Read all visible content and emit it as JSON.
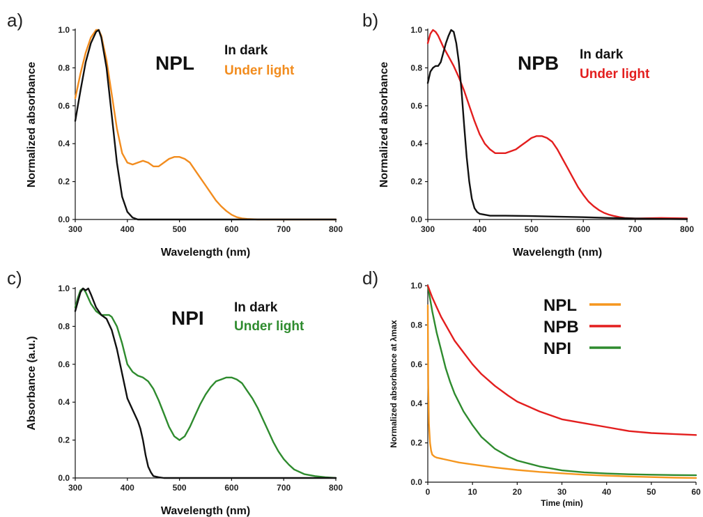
{
  "chart_data": [
    {
      "panel": "a)",
      "type": "line",
      "label": "NPL",
      "xlabel": "Wavelength (nm)",
      "ylabel": "Normalized absorbance",
      "xlim": [
        300,
        800
      ],
      "ylim": [
        0,
        1.0
      ],
      "xticks": [
        "300",
        "400",
        "500",
        "600",
        "700",
        "800"
      ],
      "yticks": [
        "0.0",
        "0.2",
        "0.4",
        "0.6",
        "0.8",
        "1.0"
      ],
      "series": [
        {
          "name": "In dark",
          "color": "#111111",
          "x": [
            300,
            310,
            320,
            330,
            340,
            345,
            350,
            360,
            370,
            380,
            390,
            400,
            410,
            420,
            450,
            500,
            600,
            700,
            800
          ],
          "y": [
            0.52,
            0.68,
            0.83,
            0.93,
            0.99,
            1.0,
            0.96,
            0.8,
            0.55,
            0.3,
            0.12,
            0.04,
            0.01,
            0.0,
            0.0,
            0.0,
            0.0,
            0.0,
            0.0
          ]
        },
        {
          "name": "Under light",
          "color": "#f28c1e",
          "x": [
            300,
            310,
            320,
            330,
            340,
            345,
            350,
            360,
            370,
            380,
            390,
            400,
            410,
            420,
            430,
            440,
            450,
            460,
            470,
            480,
            490,
            500,
            510,
            520,
            530,
            540,
            550,
            560,
            570,
            580,
            590,
            600,
            610,
            620,
            630,
            650,
            700,
            800
          ],
          "y": [
            0.64,
            0.77,
            0.88,
            0.96,
            1.0,
            1.0,
            0.97,
            0.84,
            0.66,
            0.48,
            0.35,
            0.3,
            0.29,
            0.3,
            0.31,
            0.3,
            0.28,
            0.28,
            0.3,
            0.32,
            0.33,
            0.33,
            0.32,
            0.3,
            0.26,
            0.22,
            0.18,
            0.14,
            0.1,
            0.07,
            0.045,
            0.025,
            0.012,
            0.006,
            0.003,
            0.0,
            0.0,
            0.0
          ]
        }
      ]
    },
    {
      "panel": "b)",
      "type": "line",
      "label": "NPB",
      "xlabel": "Wavelength (nm)",
      "ylabel": "Normalized absorbance",
      "xlim": [
        300,
        800
      ],
      "ylim": [
        0,
        1.0
      ],
      "xticks": [
        "300",
        "400",
        "500",
        "600",
        "700",
        "800"
      ],
      "yticks": [
        "0.0",
        "0.2",
        "0.4",
        "0.6",
        "0.8",
        "1.0"
      ],
      "series": [
        {
          "name": "In dark",
          "color": "#111111",
          "x": [
            300,
            305,
            310,
            315,
            320,
            325,
            330,
            335,
            340,
            345,
            350,
            355,
            360,
            365,
            370,
            375,
            380,
            385,
            390,
            395,
            400,
            410,
            420,
            450,
            500,
            550,
            600,
            650,
            700,
            750,
            800
          ],
          "y": [
            0.72,
            0.78,
            0.8,
            0.81,
            0.81,
            0.83,
            0.88,
            0.93,
            0.97,
            1.0,
            0.99,
            0.93,
            0.83,
            0.68,
            0.5,
            0.33,
            0.2,
            0.11,
            0.06,
            0.04,
            0.03,
            0.025,
            0.02,
            0.02,
            0.018,
            0.015,
            0.012,
            0.008,
            0.005,
            0.003,
            0.002
          ]
        },
        {
          "name": "Under light",
          "color": "#e31e1e",
          "x": [
            300,
            305,
            310,
            315,
            320,
            330,
            340,
            350,
            360,
            370,
            380,
            390,
            400,
            410,
            420,
            430,
            440,
            450,
            460,
            470,
            480,
            490,
            500,
            510,
            520,
            530,
            540,
            550,
            560,
            570,
            580,
            590,
            600,
            610,
            620,
            630,
            640,
            650,
            660,
            670,
            680,
            700,
            750,
            800
          ],
          "y": [
            0.93,
            0.98,
            1.0,
            0.99,
            0.97,
            0.91,
            0.86,
            0.81,
            0.75,
            0.68,
            0.6,
            0.52,
            0.45,
            0.4,
            0.37,
            0.35,
            0.35,
            0.35,
            0.36,
            0.37,
            0.39,
            0.41,
            0.43,
            0.44,
            0.44,
            0.43,
            0.41,
            0.37,
            0.32,
            0.27,
            0.22,
            0.17,
            0.13,
            0.095,
            0.07,
            0.05,
            0.035,
            0.025,
            0.018,
            0.012,
            0.008,
            0.005,
            0.008,
            0.006
          ]
        }
      ]
    },
    {
      "panel": "c)",
      "type": "line",
      "label": "NPI",
      "xlabel": "Wavelength (nm)",
      "ylabel": "Absorbance (a.u.)",
      "xlim": [
        300,
        800
      ],
      "ylim": [
        0,
        1.0
      ],
      "xticks": [
        "300",
        "400",
        "500",
        "600",
        "700",
        "800"
      ],
      "yticks": [
        "0.0",
        "0.2",
        "0.4",
        "0.6",
        "0.8",
        "1.0"
      ],
      "series": [
        {
          "name": "In dark",
          "color": "#111111",
          "x": [
            300,
            305,
            310,
            315,
            320,
            325,
            330,
            340,
            350,
            360,
            370,
            380,
            390,
            400,
            410,
            420,
            425,
            430,
            435,
            440,
            445,
            450,
            460,
            470,
            500,
            600,
            700,
            800
          ],
          "y": [
            0.88,
            0.93,
            0.98,
            1.0,
            0.99,
            1.0,
            0.97,
            0.9,
            0.86,
            0.84,
            0.78,
            0.68,
            0.55,
            0.42,
            0.36,
            0.3,
            0.26,
            0.2,
            0.12,
            0.06,
            0.03,
            0.01,
            0.004,
            0.0,
            0.0,
            0.0,
            0.0,
            0.0
          ]
        },
        {
          "name": "Under light",
          "color": "#2e8b2e",
          "x": [
            300,
            305,
            310,
            315,
            320,
            330,
            340,
            350,
            360,
            365,
            370,
            380,
            390,
            400,
            410,
            420,
            430,
            440,
            450,
            460,
            470,
            480,
            490,
            500,
            510,
            520,
            530,
            540,
            550,
            560,
            570,
            580,
            590,
            600,
            610,
            620,
            630,
            640,
            650,
            660,
            670,
            680,
            690,
            700,
            710,
            720,
            740,
            760,
            780,
            800
          ],
          "y": [
            0.9,
            0.95,
            0.99,
            1.0,
            0.98,
            0.92,
            0.88,
            0.86,
            0.86,
            0.86,
            0.85,
            0.8,
            0.71,
            0.6,
            0.56,
            0.54,
            0.53,
            0.51,
            0.47,
            0.41,
            0.34,
            0.27,
            0.22,
            0.2,
            0.22,
            0.27,
            0.33,
            0.39,
            0.44,
            0.48,
            0.51,
            0.52,
            0.53,
            0.53,
            0.52,
            0.5,
            0.46,
            0.42,
            0.37,
            0.31,
            0.25,
            0.19,
            0.14,
            0.1,
            0.07,
            0.045,
            0.02,
            0.01,
            0.004,
            0.0
          ]
        }
      ]
    },
    {
      "panel": "d)",
      "type": "line",
      "xlabel": "Time (min)",
      "ylabel": "Normalized absorbance at λmax",
      "xlim": [
        0,
        60
      ],
      "ylim": [
        0,
        1.0
      ],
      "xticks": [
        "0",
        "10",
        "20",
        "30",
        "40",
        "50",
        "60"
      ],
      "yticks": [
        "0.0",
        "0.2",
        "0.4",
        "0.6",
        "0.8",
        "1.0"
      ],
      "legend_position": "top-right",
      "series": [
        {
          "name": "NPL",
          "color": "#f5961e",
          "x": [
            0,
            0.1,
            0.25,
            0.5,
            0.75,
            1,
            1.5,
            2,
            3,
            5,
            7,
            10,
            15,
            20,
            25,
            30,
            35,
            40,
            45,
            50,
            55,
            60
          ],
          "y": [
            0.9,
            0.5,
            0.3,
            0.2,
            0.16,
            0.14,
            0.13,
            0.125,
            0.12,
            0.11,
            0.1,
            0.09,
            0.075,
            0.062,
            0.052,
            0.045,
            0.038,
            0.033,
            0.029,
            0.026,
            0.023,
            0.021
          ]
        },
        {
          "name": "NPB",
          "color": "#e31e1e",
          "x": [
            0,
            1,
            2,
            3,
            4,
            5,
            6,
            8,
            10,
            12,
            15,
            18,
            20,
            25,
            30,
            35,
            40,
            45,
            50,
            55,
            60
          ],
          "y": [
            1.0,
            0.94,
            0.89,
            0.84,
            0.8,
            0.76,
            0.72,
            0.66,
            0.6,
            0.55,
            0.49,
            0.44,
            0.41,
            0.36,
            0.32,
            0.3,
            0.28,
            0.26,
            0.25,
            0.245,
            0.24
          ]
        },
        {
          "name": "NPI",
          "color": "#2e8b2e",
          "x": [
            0,
            1,
            2,
            3,
            4,
            5,
            6,
            8,
            10,
            12,
            15,
            18,
            20,
            25,
            30,
            35,
            40,
            45,
            50,
            55,
            60
          ],
          "y": [
            1.0,
            0.87,
            0.76,
            0.67,
            0.58,
            0.51,
            0.45,
            0.36,
            0.29,
            0.23,
            0.17,
            0.13,
            0.11,
            0.08,
            0.06,
            0.05,
            0.044,
            0.04,
            0.038,
            0.036,
            0.035
          ]
        }
      ]
    }
  ]
}
